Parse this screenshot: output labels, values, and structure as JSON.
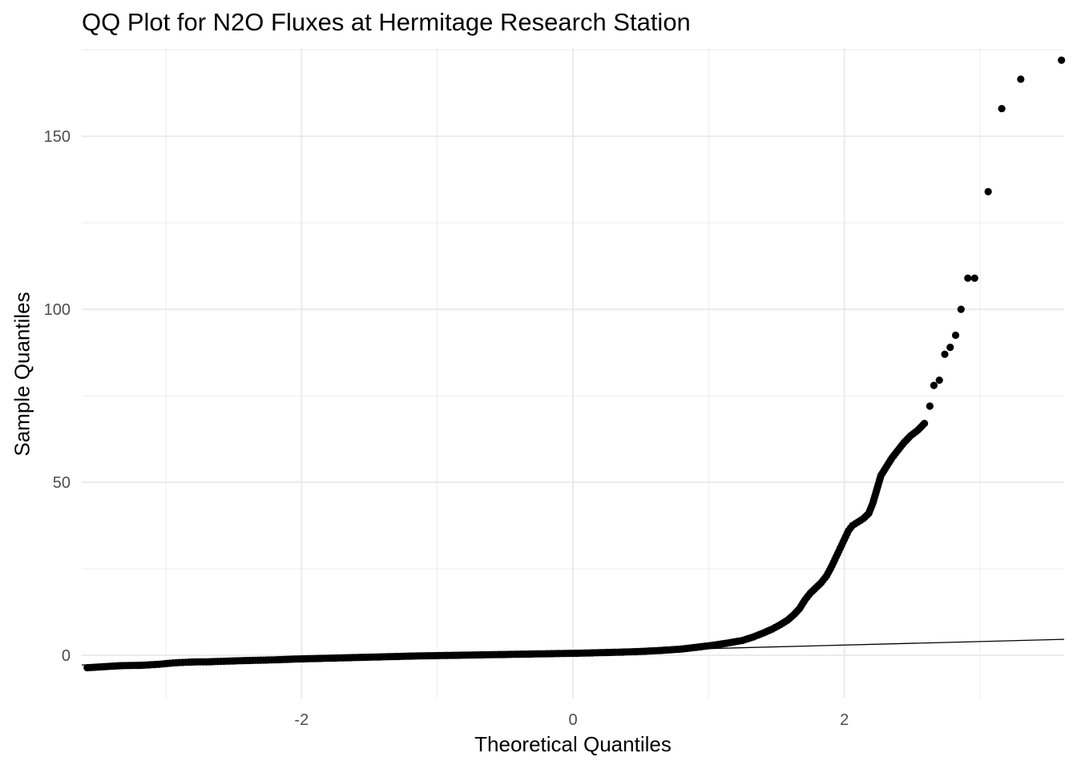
{
  "chart_data": {
    "type": "scatter",
    "title": "QQ Plot for N2O Fluxes at Hermitage Research Station",
    "xlabel": "Theoretical Quantiles",
    "ylabel": "Sample Quantiles",
    "xlim": [
      -3.62,
      3.62
    ],
    "ylim": [
      -12.5,
      175.5
    ],
    "x_ticks": [
      -2,
      0,
      2
    ],
    "x_tick_labels": [
      "-2",
      "0",
      "2"
    ],
    "y_ticks": [
      0,
      50,
      100,
      150
    ],
    "y_tick_labels": [
      "0",
      "50",
      "100",
      "150"
    ],
    "grid": true,
    "legend": "none",
    "colors": {
      "points": "#000000",
      "line": "#000000",
      "grid": "#ebebeb",
      "tick_text": "#4d4d4d"
    },
    "reference_line": {
      "x": [
        -3.62,
        3.62
      ],
      "y": [
        -2.8,
        4.6
      ]
    },
    "series": [
      {
        "values_xy": [
          [
            -3.58,
            -3.6
          ],
          [
            -3.33,
            -3.0
          ],
          [
            -3.18,
            -2.9
          ],
          [
            -3.05,
            -2.6
          ],
          [
            -2.97,
            -2.3
          ],
          [
            -2.9,
            -2.1
          ],
          [
            -2.83,
            -2.0
          ],
          [
            -2.77,
            -1.9
          ],
          [
            -2.7,
            -1.9
          ],
          [
            -2.62,
            -1.8
          ],
          [
            -2.55,
            -1.7
          ],
          [
            -2.47,
            -1.6
          ],
          [
            -2.38,
            -1.5
          ],
          [
            -2.28,
            -1.4
          ],
          [
            -2.18,
            -1.3
          ],
          [
            -2.05,
            -1.1
          ],
          [
            -1.9,
            -0.95
          ],
          [
            -1.75,
            -0.8
          ],
          [
            -1.6,
            -0.65
          ],
          [
            -1.45,
            -0.5
          ],
          [
            -1.3,
            -0.35
          ],
          [
            -1.15,
            -0.2
          ],
          [
            -1.0,
            -0.1
          ],
          [
            -0.85,
            0.0
          ],
          [
            -0.7,
            0.1
          ],
          [
            -0.55,
            0.2
          ],
          [
            -0.4,
            0.3
          ],
          [
            -0.25,
            0.4
          ],
          [
            -0.1,
            0.5
          ],
          [
            0.05,
            0.6
          ],
          [
            0.2,
            0.75
          ],
          [
            0.35,
            0.9
          ],
          [
            0.5,
            1.1
          ],
          [
            0.65,
            1.4
          ],
          [
            0.8,
            1.8
          ],
          [
            0.95,
            2.5
          ],
          [
            1.05,
            3.0
          ],
          [
            1.15,
            3.6
          ],
          [
            1.25,
            4.3
          ],
          [
            1.33,
            5.3
          ],
          [
            1.4,
            6.4
          ],
          [
            1.47,
            7.6
          ],
          [
            1.53,
            8.9
          ],
          [
            1.58,
            10.1
          ],
          [
            1.63,
            11.8
          ],
          [
            1.67,
            13.5
          ],
          [
            1.71,
            16.0
          ],
          [
            1.75,
            18.0
          ],
          [
            1.79,
            19.5
          ],
          [
            1.83,
            21.0
          ],
          [
            1.87,
            23.0
          ],
          [
            1.91,
            26.0
          ],
          [
            1.94,
            28.5
          ],
          [
            1.97,
            31.0
          ],
          [
            2.0,
            33.5
          ],
          [
            2.03,
            36.0
          ],
          [
            2.06,
            37.5
          ],
          [
            2.1,
            38.5
          ],
          [
            2.14,
            39.5
          ],
          [
            2.18,
            41.0
          ],
          [
            2.21,
            44.0
          ],
          [
            2.24,
            48.0
          ],
          [
            2.27,
            52.0
          ],
          [
            2.31,
            54.5
          ],
          [
            2.35,
            57.0
          ],
          [
            2.39,
            59.0
          ],
          [
            2.44,
            61.5
          ],
          [
            2.49,
            63.5
          ],
          [
            2.54,
            65.0
          ],
          [
            2.59,
            67.0
          ],
          [
            2.63,
            72.0
          ],
          [
            2.66,
            78.0
          ],
          [
            2.7,
            79.5
          ],
          [
            2.74,
            87.0
          ],
          [
            2.78,
            89.0
          ],
          [
            2.82,
            92.5
          ],
          [
            2.86,
            100.0
          ],
          [
            2.91,
            109.0
          ],
          [
            2.96,
            109.0
          ],
          [
            3.06,
            134.0
          ],
          [
            3.16,
            158.0
          ],
          [
            3.3,
            166.5
          ],
          [
            3.6,
            172.0
          ]
        ]
      }
    ]
  }
}
